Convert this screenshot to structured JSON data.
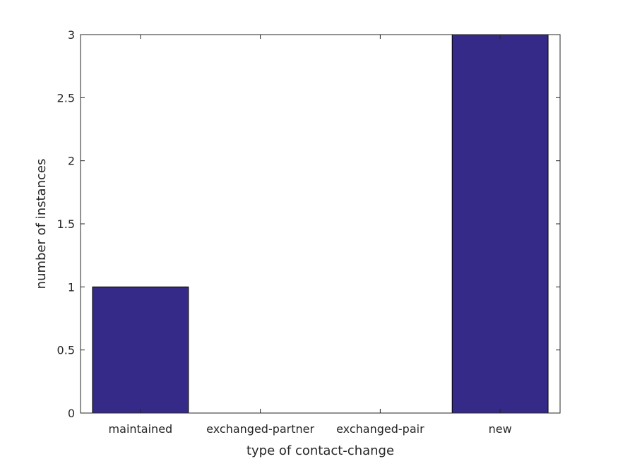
{
  "chart_data": {
    "type": "bar",
    "title": "",
    "xlabel": "type of contact-change",
    "ylabel": "number of instances",
    "categories": [
      "maintained",
      "exchanged-partner",
      "exchanged-pair",
      "new"
    ],
    "values": [
      1,
      0,
      0,
      3
    ],
    "ylim": [
      0,
      3
    ],
    "yticks": [
      "0",
      "0.5",
      "1",
      "1.5",
      "2",
      "2.5",
      "3"
    ],
    "grid": false,
    "bar_color": "#352a87"
  }
}
